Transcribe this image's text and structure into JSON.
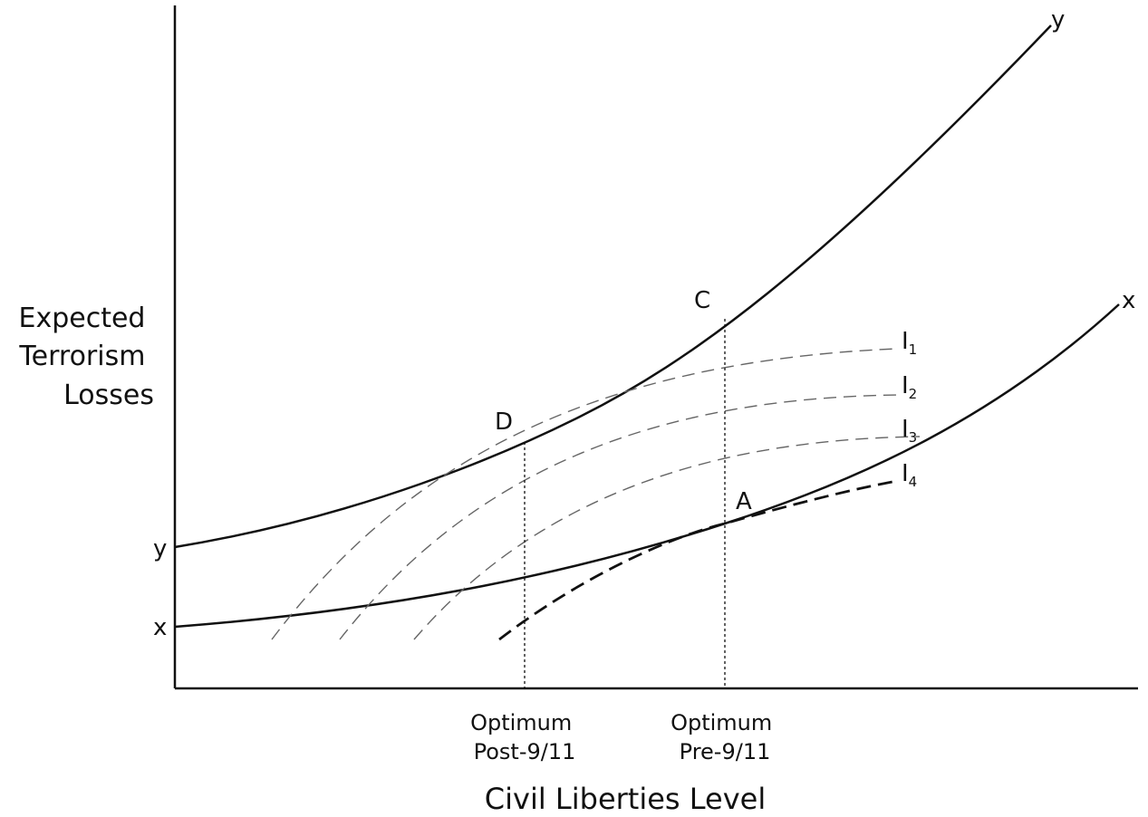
{
  "axes": {
    "y_label_lines": [
      "Expected",
      "Terrorism",
      "Losses"
    ],
    "x_label": "Civil Liberties Level"
  },
  "curves": {
    "y": {
      "label": "y",
      "end_label": "y"
    },
    "x": {
      "label": "x",
      "end_label": "x"
    }
  },
  "points": {
    "A": "A",
    "C": "C",
    "D": "D"
  },
  "indifference_curves": [
    {
      "base": "I",
      "sub": "1"
    },
    {
      "base": "I",
      "sub": "2"
    },
    {
      "base": "I",
      "sub": "3"
    },
    {
      "base": "I",
      "sub": "4"
    }
  ],
  "optima": {
    "post": {
      "line1": "Optimum",
      "line2": "Post-9/11"
    },
    "pre": {
      "line1": "Optimum",
      "line2": "Pre-9/11"
    }
  }
}
